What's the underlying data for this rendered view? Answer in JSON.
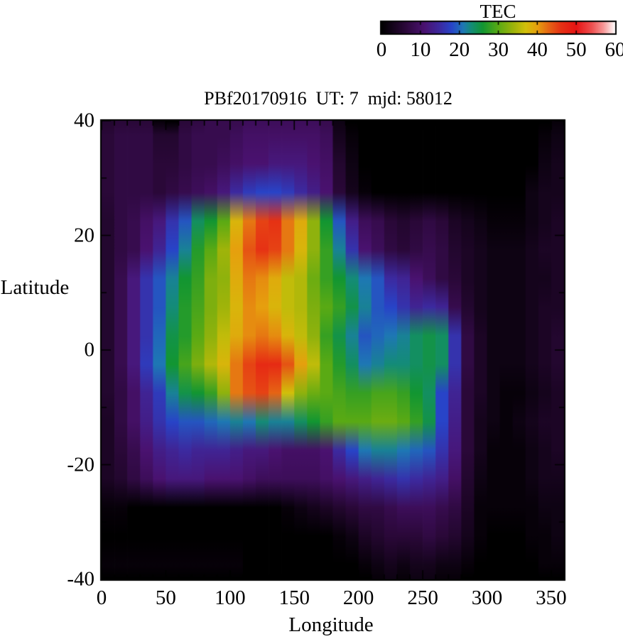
{
  "title": "PBf20170916  UT: 7  mjd: 58012",
  "colorbar": {
    "title": "TEC",
    "ticks": [
      0,
      10,
      20,
      30,
      40,
      50,
      60
    ],
    "min": 0,
    "max": 60
  },
  "axes": {
    "xlabel": "Longitude",
    "ylabel": "Latitude"
  },
  "chart_data": {
    "type": "heatmap",
    "title": "PBf20170916  UT: 7  mjd: 58012",
    "xlabel": "Longitude",
    "ylabel": "Latitude",
    "xlim": [
      0,
      360
    ],
    "ylim": [
      -40,
      40
    ],
    "x_ticks": [
      0,
      50,
      100,
      150,
      200,
      250,
      300,
      350
    ],
    "y_ticks": [
      40,
      20,
      0,
      -20,
      -40
    ],
    "x_minor_step": 10,
    "y_minor_step": 10,
    "colorbar_title": "TEC",
    "colorbar_range": [
      0,
      60
    ],
    "colorbar_ticks": [
      0,
      10,
      20,
      30,
      40,
      50,
      60
    ],
    "colormap_stops": [
      [
        0,
        "#000000"
      ],
      [
        6,
        "#2a0838"
      ],
      [
        11,
        "#4a1270"
      ],
      [
        15,
        "#3c2aa0"
      ],
      [
        18,
        "#2844c8"
      ],
      [
        21,
        "#1e78b4"
      ],
      [
        23,
        "#148c78"
      ],
      [
        26,
        "#129632"
      ],
      [
        30,
        "#5aaa14"
      ],
      [
        34,
        "#a0b40a"
      ],
      [
        37,
        "#d2c00a"
      ],
      [
        40,
        "#e6a00e"
      ],
      [
        43,
        "#e66414"
      ],
      [
        46,
        "#e63214"
      ],
      [
        50,
        "#e61414"
      ],
      [
        54,
        "#ee5050"
      ],
      [
        57,
        "#f89898"
      ],
      [
        60,
        "#ffffff"
      ]
    ],
    "lon_bin_centers": [
      5,
      15,
      25,
      35,
      45,
      55,
      65,
      75,
      85,
      95,
      105,
      115,
      125,
      135,
      145,
      155,
      165,
      175,
      185,
      195,
      205,
      215,
      225,
      235,
      245,
      255,
      265,
      275,
      285,
      295,
      305,
      315,
      325,
      335,
      345,
      355
    ],
    "lat_rows": [
      40,
      37.5,
      32.5,
      27.5,
      22.5,
      17.5,
      12.5,
      7.5,
      2.5,
      -2.5,
      -7.5,
      -12.5,
      -17.5,
      -22.5,
      -27.5,
      -32.5,
      -37.5,
      -40
    ],
    "tec_grid": [
      [
        5,
        6,
        6,
        6,
        1,
        0,
        6,
        7,
        8,
        8,
        8,
        9,
        9,
        9,
        9,
        9,
        9,
        8,
        2,
        0,
        0,
        0,
        0,
        0,
        0,
        0,
        0,
        0,
        0,
        0,
        0,
        0,
        0,
        0,
        0,
        1
      ],
      [
        6,
        7,
        7,
        7,
        5,
        5,
        7,
        8,
        8,
        8,
        9,
        10,
        10,
        10,
        10,
        10,
        10,
        9,
        3,
        1,
        0,
        0,
        0,
        0,
        0,
        0,
        0,
        0,
        0,
        0,
        0,
        0,
        0,
        0,
        1,
        2
      ],
      [
        6,
        7,
        7,
        7,
        6,
        6,
        7,
        8,
        8,
        9,
        10,
        11,
        11,
        12,
        12,
        12,
        11,
        10,
        5,
        2,
        0,
        0,
        0,
        0,
        0,
        0,
        0,
        0,
        0,
        0,
        0,
        0,
        0,
        0,
        2,
        3
      ],
      [
        6,
        7,
        7,
        7,
        6,
        7,
        8,
        9,
        10,
        12,
        15,
        17,
        18,
        18,
        17,
        15,
        13,
        11,
        6,
        3,
        1,
        0,
        0,
        0,
        0,
        0,
        0,
        0,
        0,
        0,
        0,
        0,
        0,
        2,
        3,
        3
      ],
      [
        5,
        7,
        8,
        10,
        12,
        16,
        19,
        24,
        26,
        30,
        38,
        42,
        45,
        46,
        42,
        39,
        33,
        26,
        19,
        13,
        9,
        8,
        6,
        5,
        6,
        7,
        6,
        4,
        3,
        2,
        1,
        1,
        1,
        2,
        3,
        4
      ],
      [
        5,
        7,
        8,
        11,
        14,
        18,
        22,
        27,
        30,
        34,
        40,
        44,
        46,
        45,
        42,
        38,
        33,
        28,
        22,
        16,
        11,
        9,
        7,
        6,
        7,
        8,
        7,
        5,
        4,
        3,
        2,
        2,
        2,
        3,
        4,
        4
      ],
      [
        5,
        8,
        12,
        16,
        19,
        22,
        26,
        28,
        32,
        33,
        39,
        42,
        41,
        39,
        36,
        35,
        31,
        28,
        26,
        23,
        21,
        19,
        15,
        14,
        11,
        9,
        7,
        6,
        4,
        3,
        2,
        2,
        2,
        3,
        3,
        4
      ],
      [
        5,
        8,
        12,
        16,
        19,
        23,
        27,
        29,
        32,
        34,
        38,
        41,
        40,
        38,
        36,
        35,
        32,
        30,
        28,
        25,
        22,
        19,
        18,
        16,
        14,
        15,
        14,
        8,
        5,
        3,
        2,
        2,
        2,
        3,
        4,
        4
      ],
      [
        5,
        8,
        12,
        16,
        20,
        25,
        27,
        30,
        33,
        36,
        39,
        41,
        42,
        41,
        38,
        36,
        33,
        28,
        25,
        22,
        19,
        20,
        21,
        22,
        24,
        25,
        24,
        16,
        7,
        4,
        2,
        2,
        2,
        3,
        4,
        5
      ],
      [
        5,
        8,
        12,
        17,
        21,
        26,
        29,
        32,
        35,
        38,
        42,
        45,
        47,
        47,
        44,
        40,
        36,
        30,
        27,
        24,
        21,
        22,
        23,
        23,
        24,
        25,
        24,
        16,
        7,
        4,
        2,
        2,
        2,
        3,
        4,
        5
      ],
      [
        5,
        7,
        10,
        14,
        17,
        22,
        25,
        26,
        28,
        33,
        42,
        44,
        45,
        43,
        37,
        33,
        31,
        30,
        29,
        28,
        28,
        29,
        29,
        28,
        26,
        24,
        18,
        14,
        6,
        4,
        2,
        1,
        1,
        2,
        3,
        4
      ],
      [
        4,
        7,
        10,
        13,
        16,
        18,
        19,
        19,
        20,
        21,
        22,
        21,
        23,
        22,
        22,
        24,
        26,
        28,
        30,
        30,
        30,
        31,
        31,
        30,
        28,
        25,
        18,
        13,
        6,
        3,
        2,
        1,
        2,
        3,
        4,
        4
      ],
      [
        4,
        6,
        8,
        11,
        13,
        14,
        15,
        14,
        14,
        14,
        13,
        12,
        12,
        11,
        10,
        10,
        10,
        11,
        15,
        18,
        21,
        22,
        22,
        21,
        20,
        19,
        16,
        12,
        6,
        3,
        1,
        1,
        1,
        2,
        3,
        4
      ],
      [
        4,
        5,
        7,
        9,
        11,
        12,
        12,
        12,
        11,
        11,
        11,
        10,
        9,
        9,
        9,
        9,
        9,
        10,
        11,
        12,
        13,
        14,
        15,
        16,
        15,
        14,
        13,
        10,
        5,
        2,
        1,
        1,
        1,
        2,
        3,
        3
      ],
      [
        1,
        1,
        0,
        0,
        0,
        0,
        0,
        0,
        0,
        0,
        0,
        0,
        0,
        0,
        1,
        2,
        3,
        4,
        5,
        6,
        7,
        7,
        8,
        9,
        9,
        9,
        8,
        7,
        4,
        1,
        1,
        1,
        1,
        1,
        2,
        2
      ],
      [
        0,
        0,
        0,
        0,
        0,
        0,
        0,
        0,
        0,
        0,
        0,
        0,
        0,
        0,
        0,
        0,
        0,
        0,
        1,
        2,
        4,
        5,
        6,
        6,
        6,
        7,
        6,
        5,
        3,
        1,
        0,
        0,
        0,
        1,
        1,
        2
      ],
      [
        1,
        1,
        1,
        1,
        1,
        1,
        1,
        1,
        1,
        1,
        1,
        0,
        0,
        0,
        0,
        0,
        0,
        0,
        0,
        0,
        1,
        2,
        3,
        2,
        3,
        3,
        2,
        2,
        1,
        0,
        0,
        0,
        0,
        0,
        1,
        1
      ],
      [
        0,
        0,
        0,
        0,
        0,
        0,
        0,
        0,
        0,
        0,
        0,
        0,
        0,
        0,
        0,
        0,
        0,
        0,
        0,
        0,
        0,
        1,
        2,
        1,
        2,
        2,
        1,
        1,
        0,
        0,
        0,
        0,
        0,
        0,
        0,
        0
      ]
    ],
    "legend_position": "top-right-colorbar",
    "grid": false
  }
}
